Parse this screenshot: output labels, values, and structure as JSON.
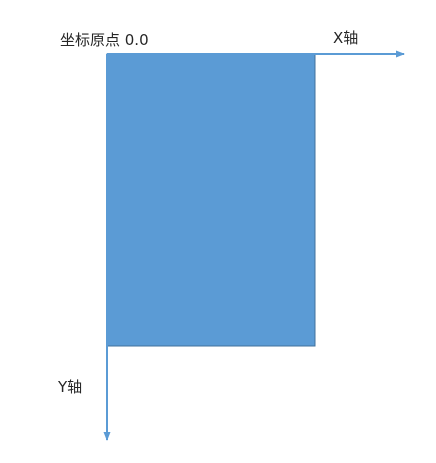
{
  "labels": {
    "origin": "坐标原点 0.0",
    "x_axis": "X轴",
    "y_axis": "Y轴"
  },
  "colors": {
    "rectangle_fill": "#5B9BD5",
    "rectangle_stroke": "#41719C",
    "axis": "#5B9BD5",
    "text": "#262626",
    "background": "#FFFFFF"
  }
}
